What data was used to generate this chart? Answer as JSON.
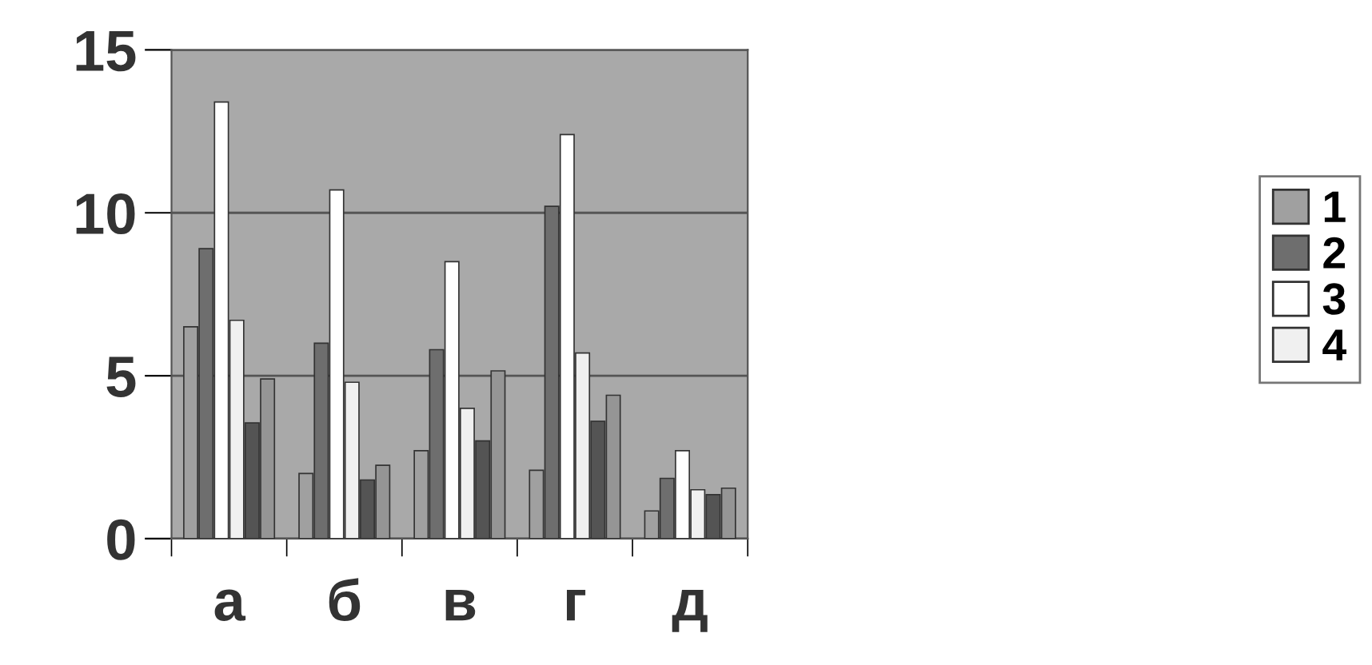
{
  "chart_data": {
    "type": "bar",
    "categories": [
      "а",
      "б",
      "в",
      "г",
      "д"
    ],
    "series": [
      {
        "name": "1",
        "color": "#a0a0a0",
        "values": [
          6.5,
          2.0,
          2.7,
          2.1,
          0.85
        ]
      },
      {
        "name": "2",
        "color": "#6e6e6e",
        "values": [
          8.9,
          6.0,
          5.8,
          10.2,
          1.85
        ]
      },
      {
        "name": "3",
        "color": "#ffffff",
        "values": [
          13.4,
          10.7,
          8.5,
          12.4,
          2.7
        ]
      },
      {
        "name": "4",
        "color": "#f0f0f0",
        "values": [
          6.7,
          4.8,
          4.0,
          5.7,
          1.5
        ]
      },
      {
        "color": "#545454",
        "values": [
          3.55,
          1.8,
          3.0,
          3.6,
          1.35
        ]
      },
      {
        "color": "#959595",
        "values": [
          4.9,
          2.25,
          5.15,
          4.4,
          1.55
        ]
      }
    ],
    "ylim": [
      0,
      15
    ],
    "yticks": [
      0,
      5,
      10,
      15
    ],
    "grid": "y",
    "legend": "right"
  }
}
